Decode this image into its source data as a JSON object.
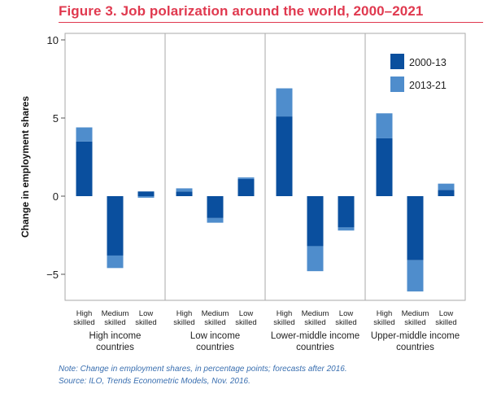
{
  "figure": {
    "title": "Figure 3.  Job polarization around the world, 2000–2021",
    "note": "Note: Change in employment shares, in percentage points; forecasts after 2016.",
    "source": "Source: ILO, Trends Econometric Models, Nov. 2016."
  },
  "colors": {
    "series_2000_13": "#0a4f9e",
    "series_2013_21": "#4f8dcc",
    "title": "#e0394f",
    "frame": "#aaaaaa"
  },
  "chart_data": {
    "type": "bar",
    "stacked": true,
    "ylabel": "Change in employment shares",
    "ylim": [
      -7,
      10
    ],
    "yticks": [
      10,
      5,
      0,
      -5
    ],
    "ytick_labels": [
      "10",
      "5",
      "0",
      "−5"
    ],
    "legend_position": "top-right",
    "grid": false,
    "groups": [
      "High income countries",
      "Low income countries",
      "Lower-middle income countries",
      "Upper-middle income countries"
    ],
    "group_label_lines": [
      [
        "High income",
        "countries"
      ],
      [
        "Low income",
        "countries"
      ],
      [
        "Lower-middle income",
        "countries"
      ],
      [
        "Upper-middle income",
        "countries"
      ]
    ],
    "categories": [
      "High skilled",
      "Medium skilled",
      "Low skilled"
    ],
    "category_label_lines": [
      [
        "High",
        "skilled"
      ],
      [
        "Medium",
        "skilled"
      ],
      [
        "Low",
        "skilled"
      ]
    ],
    "series": [
      {
        "name": "2000-13",
        "values": [
          [
            3.5,
            -3.8,
            0.3
          ],
          [
            0.3,
            -1.4,
            1.1
          ],
          [
            5.1,
            -3.2,
            -2.0
          ],
          [
            3.7,
            -4.1,
            0.4
          ]
        ]
      },
      {
        "name": "2013-21",
        "values": [
          [
            0.9,
            -0.8,
            -0.1
          ],
          [
            0.2,
            -0.3,
            0.1
          ],
          [
            1.8,
            -1.6,
            -0.2
          ],
          [
            1.6,
            -2.0,
            0.4
          ]
        ]
      }
    ]
  }
}
